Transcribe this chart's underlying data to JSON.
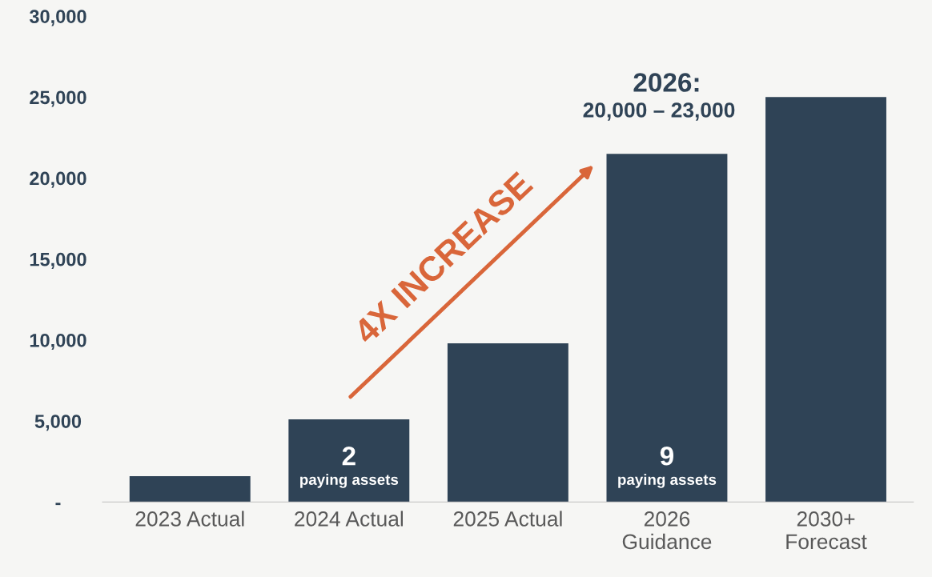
{
  "chart_data": {
    "type": "bar",
    "categories": [
      "2023 Actual",
      "2024 Actual",
      "2025 Actual",
      "2026\nGuidance",
      "2030+\nForecast"
    ],
    "values": [
      1600,
      5100,
      9800,
      21500,
      25000
    ],
    "color": "#2f4356",
    "ylim": [
      0,
      30000
    ],
    "yticks": [
      {
        "value": 0,
        "label": "-"
      },
      {
        "value": 5000,
        "label": "5,000"
      },
      {
        "value": 10000,
        "label": "10,000"
      },
      {
        "value": 15000,
        "label": "15,000"
      },
      {
        "value": 20000,
        "label": "20,000"
      },
      {
        "value": 25000,
        "label": "25,000"
      },
      {
        "value": 30000,
        "label": "30,000"
      }
    ],
    "grid": false,
    "annotations": [
      "2\npaying assets",
      "9\npaying assets",
      {
        "text": "2026:\n20,000 – 23,000",
        "x": "2026\nGuidance",
        "y": 21500
      },
      "4X INCREASE"
    ]
  }
}
